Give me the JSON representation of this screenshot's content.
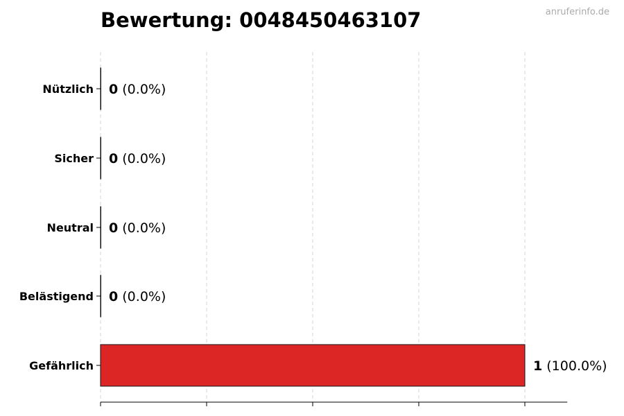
{
  "watermark": "anruferinfo.de",
  "chart_data": {
    "type": "bar",
    "orientation": "horizontal",
    "title": "Bewertung: 0048450463107",
    "xlabel": "",
    "ylabel": "",
    "categories": [
      "Nützlich",
      "Sicher",
      "Neutral",
      "Belästigend",
      "Gefährlich"
    ],
    "values": [
      0,
      0,
      0,
      0,
      1
    ],
    "percent_labels": [
      "(0.0%)",
      "(0.0%)",
      "(0.0%)",
      "(0.0%)",
      "(100.0%)"
    ],
    "xlim": [
      0,
      1.1
    ],
    "xticks": [
      0,
      0.25,
      0.5,
      0.75,
      1
    ],
    "xtick_labels_shown": false,
    "grid": "x, dashed",
    "colors": {
      "Gefährlich": "#dc2626",
      "default": "#dc2626"
    }
  }
}
